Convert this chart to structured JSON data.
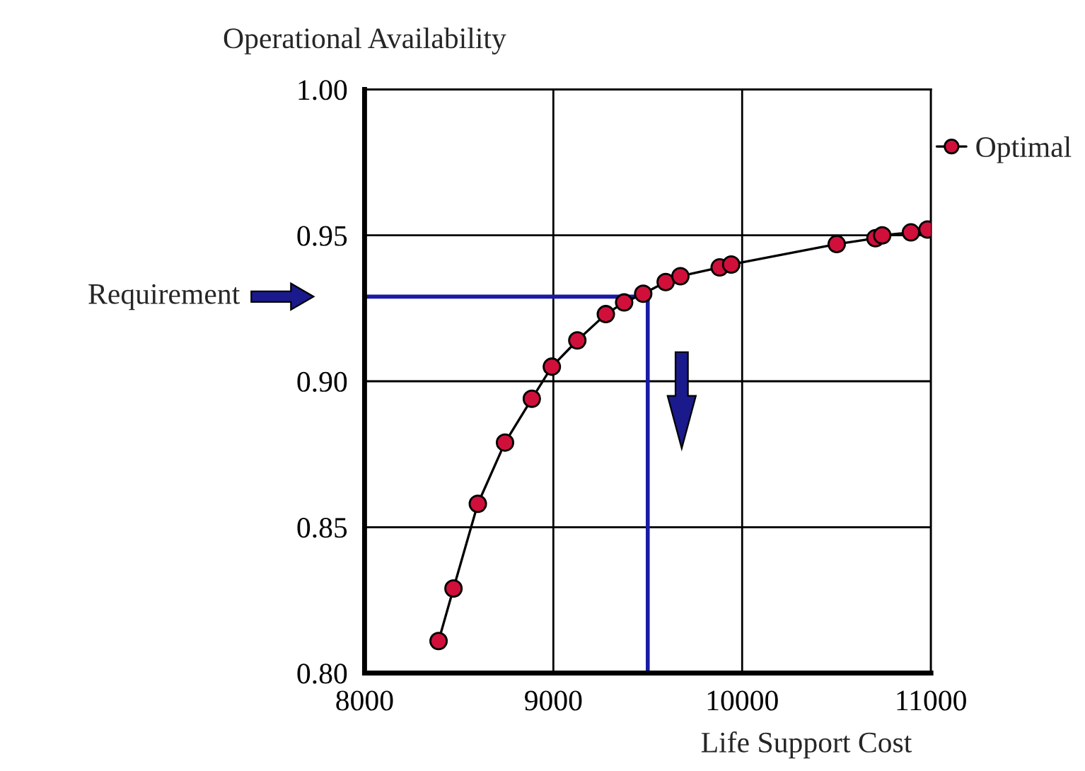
{
  "chart_data": {
    "type": "line",
    "xlabel": "Life Support Cost",
    "ylabel": "Operational Availability",
    "x": [
      8392,
      8471,
      8600,
      8744,
      8886,
      8992,
      9127,
      9278,
      9375,
      9476,
      9595,
      9673,
      9881,
      9942,
      10501,
      10706,
      10742,
      10894,
      10982
    ],
    "series": [
      {
        "name": "Optimal",
        "color": "#d0103a",
        "values": [
          0.811,
          0.829,
          0.858,
          0.879,
          0.894,
          0.905,
          0.914,
          0.923,
          0.927,
          0.93,
          0.934,
          0.936,
          0.939,
          0.94,
          0.947,
          0.949,
          0.95,
          0.951,
          0.952
        ]
      }
    ],
    "xlim": [
      8000,
      11000
    ],
    "xticks": [
      8000,
      9000,
      10000,
      11000
    ],
    "ylim": [
      0.8,
      1.0
    ],
    "yticks": [
      {
        "value": 0.8,
        "label": "0.80"
      },
      {
        "value": 0.85,
        "label": "0.85"
      },
      {
        "value": 0.9,
        "label": "0.90"
      },
      {
        "value": 0.95,
        "label": "0.95"
      },
      {
        "value": 1.0,
        "label": "1.00"
      }
    ],
    "annotations": [
      "Requirement"
    ],
    "ref_lines": [
      {
        "axis": "y",
        "value": 0.929,
        "color": "#1a1aa6"
      },
      {
        "axis": "x",
        "value": 9500,
        "color": "#1a1aa6"
      }
    ],
    "grid": true,
    "legend": "top right",
    "marker": "circle",
    "line_style": "solid"
  }
}
